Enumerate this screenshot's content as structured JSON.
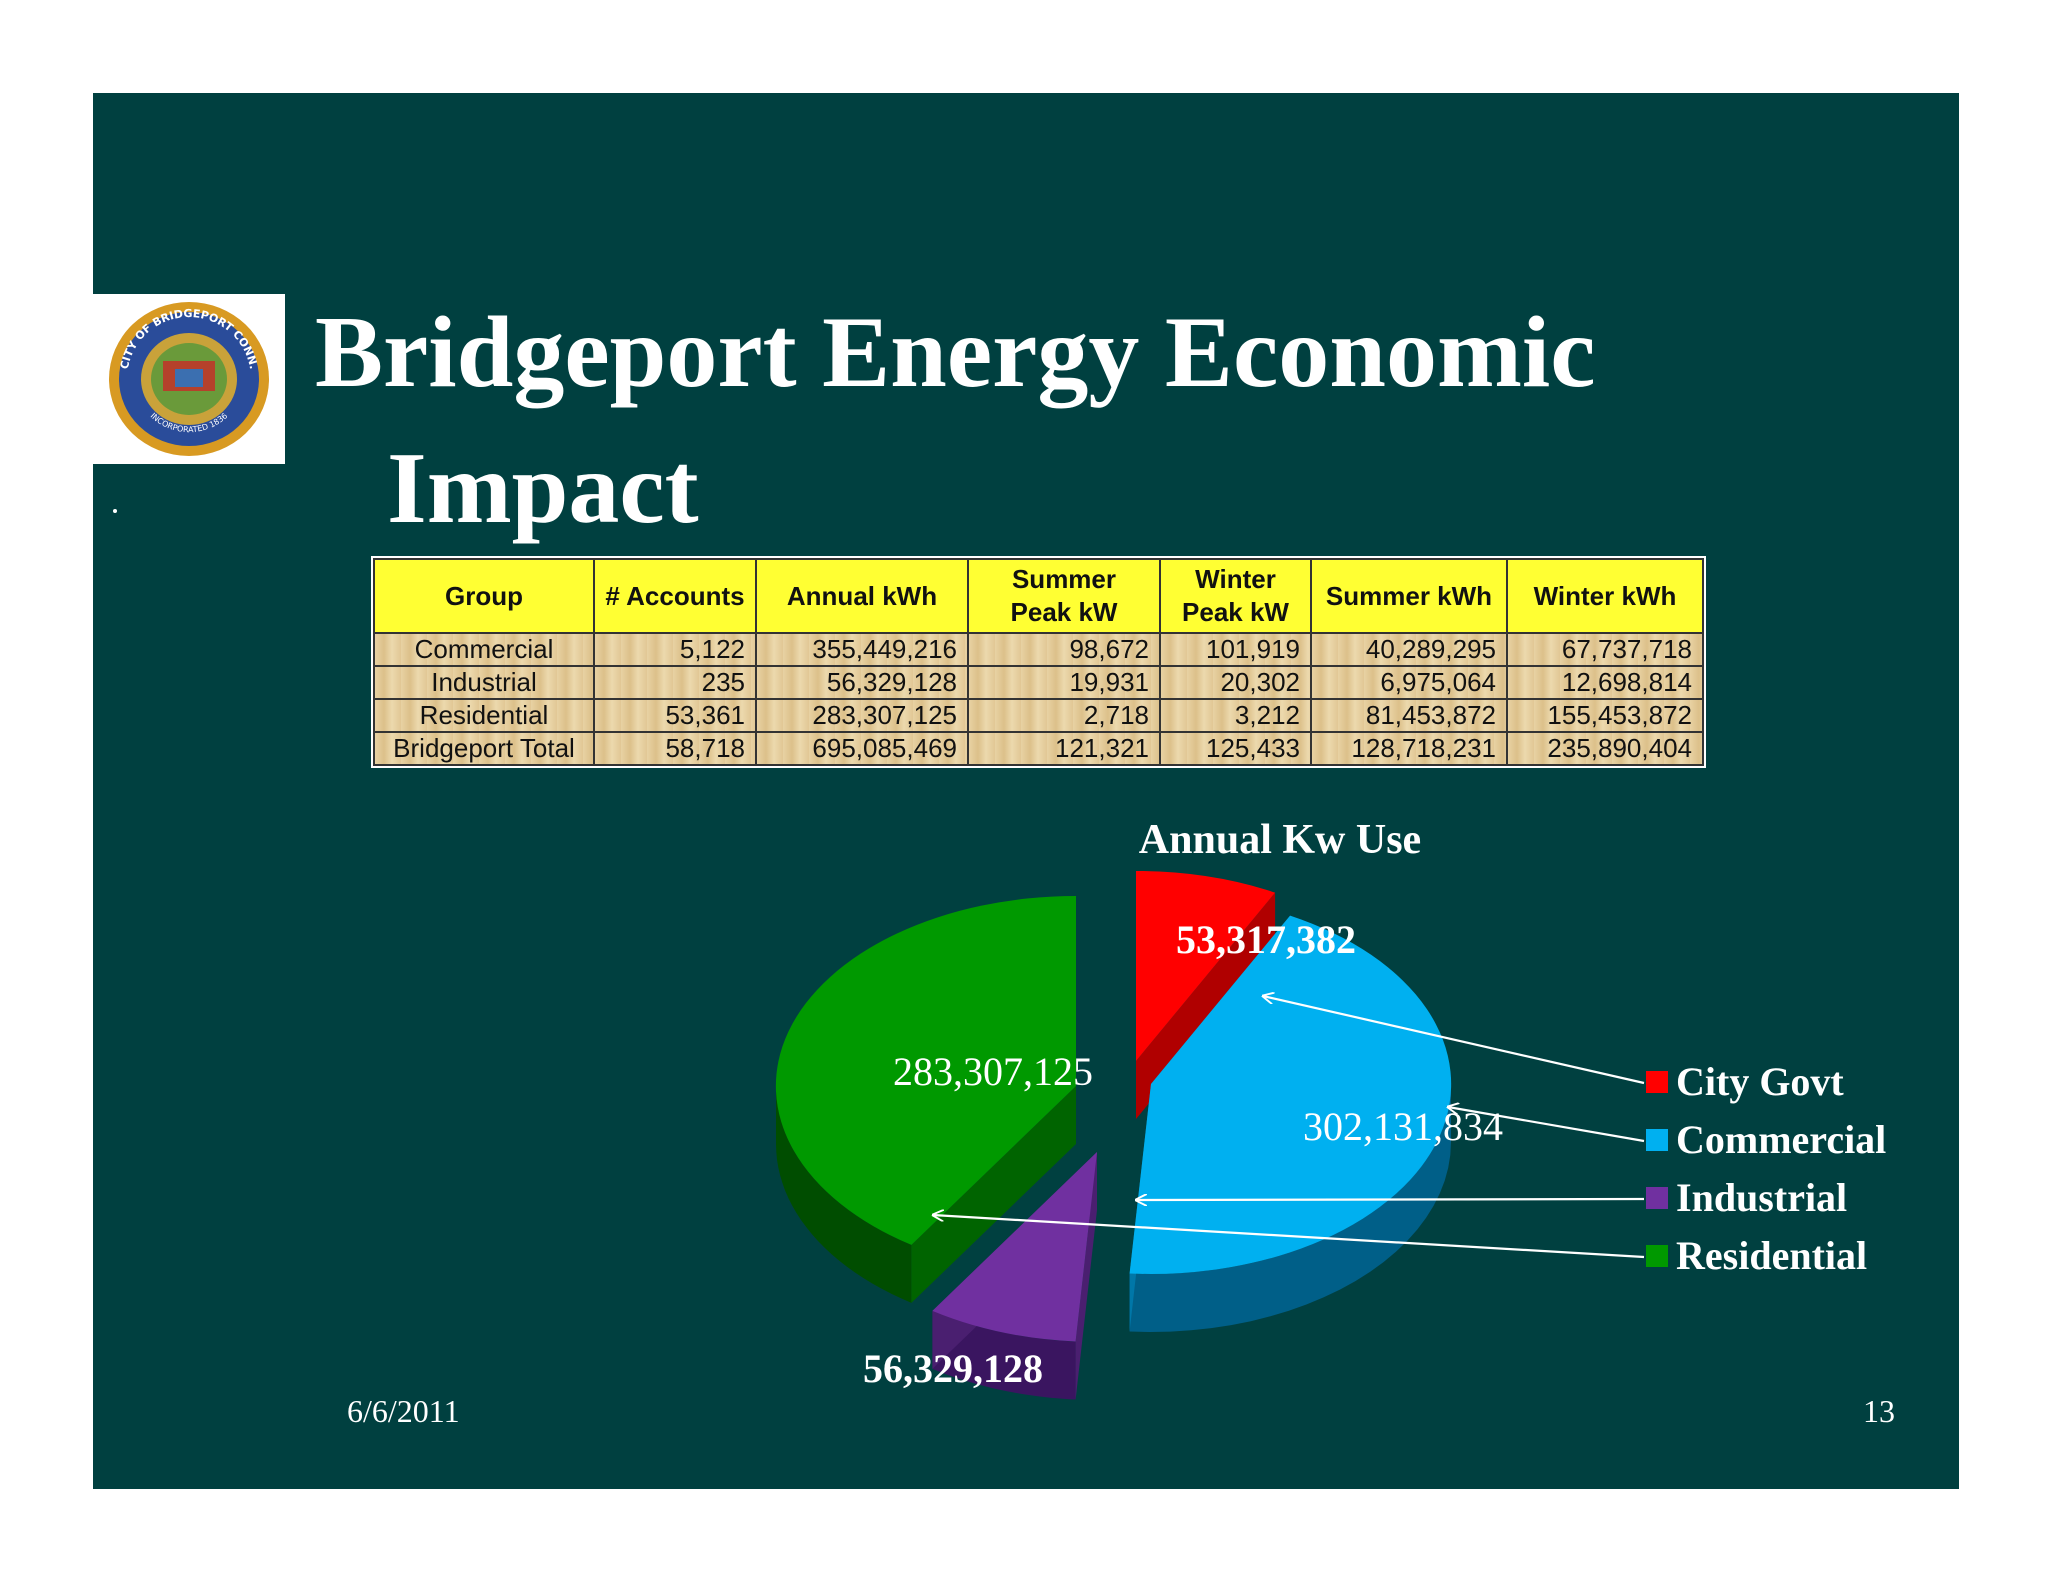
{
  "slide": {
    "title_line1": "Bridgeport Energy Economic",
    "title_line2": "Impact",
    "date": "6/6/2011",
    "page_number": "13",
    "colors": {
      "background": "#004040",
      "header_fill": "#ffff33"
    }
  },
  "logo": {
    "seal_text_top": "CITY OF BRIDGEPORT CONN.",
    "seal_text_bottom": "INCORPORATED 1836"
  },
  "table": {
    "headers": [
      "Group",
      "# Accounts",
      "Annual kWh",
      "Summer Peak kW",
      "Winter Peak kW",
      "Summer kWh",
      "Winter kWh"
    ],
    "rows": [
      [
        "Commercial",
        "5,122",
        "355,449,216",
        "98,672",
        "101,919",
        "40,289,295",
        "67,737,718"
      ],
      [
        "Industrial",
        "235",
        "56,329,128",
        "19,931",
        "20,302",
        "6,975,064",
        "12,698,814"
      ],
      [
        "Residential",
        "53,361",
        "283,307,125",
        "2,718",
        "3,212",
        "81,453,872",
        "155,453,872"
      ],
      [
        "Bridgeport Total",
        "58,718",
        "695,085,469",
        "121,321",
        "125,433",
        "128,718,231",
        "235,890,404"
      ]
    ]
  },
  "chart_data": {
    "type": "pie",
    "title": "Annual Kw Use",
    "legend_position": "right",
    "slices": [
      {
        "name": "City Govt",
        "value": 53317382,
        "label": "53,317,382",
        "color": "#ff0000"
      },
      {
        "name": "Commercial",
        "value": 302131834,
        "label": "302,131,834",
        "color": "#00b0f0"
      },
      {
        "name": "Industrial",
        "value": 56329128,
        "label": "56,329,128",
        "color": "#7030a0"
      },
      {
        "name": "Residential",
        "value": 283307125,
        "label": "283,307,125",
        "color": "#009900"
      }
    ]
  }
}
